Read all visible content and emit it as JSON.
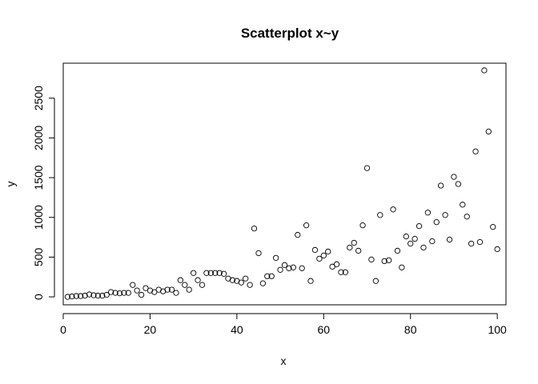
{
  "chart_data": {
    "type": "scatter",
    "title": "Scatterplot x~y",
    "xlabel": "x",
    "ylabel": "y",
    "xlim": [
      0,
      102
    ],
    "ylim": [
      -100,
      2940
    ],
    "xticks": [
      0,
      20,
      40,
      60,
      80,
      100
    ],
    "yticks": [
      0,
      500,
      1000,
      1500,
      2000,
      2500
    ],
    "grid": false,
    "legend": "none",
    "point_color": "#000000",
    "point_style": "open-circle",
    "x": [
      1,
      2,
      3,
      4,
      5,
      6,
      7,
      8,
      9,
      10,
      11,
      12,
      13,
      14,
      15,
      16,
      17,
      18,
      19,
      20,
      21,
      22,
      23,
      24,
      25,
      26,
      27,
      28,
      29,
      30,
      31,
      32,
      33,
      34,
      35,
      36,
      37,
      38,
      39,
      40,
      41,
      42,
      43,
      44,
      45,
      46,
      47,
      48,
      49,
      50,
      51,
      52,
      53,
      54,
      55,
      56,
      57,
      58,
      59,
      60,
      61,
      62,
      63,
      64,
      65,
      66,
      67,
      68,
      69,
      70,
      71,
      72,
      73,
      74,
      75,
      76,
      77,
      78,
      79,
      80,
      81,
      82,
      83,
      84,
      85,
      86,
      87,
      88,
      89,
      90,
      91,
      92,
      93,
      94,
      95,
      96,
      97,
      98,
      99,
      100
    ],
    "y": [
      0,
      5,
      10,
      10,
      15,
      30,
      20,
      15,
      15,
      25,
      60,
      50,
      45,
      50,
      50,
      150,
      80,
      25,
      110,
      80,
      60,
      90,
      70,
      90,
      90,
      50,
      210,
      150,
      90,
      300,
      210,
      150,
      300,
      300,
      300,
      300,
      290,
      230,
      210,
      200,
      180,
      230,
      150,
      860,
      550,
      170,
      260,
      260,
      490,
      340,
      400,
      360,
      370,
      780,
      360,
      900,
      200,
      590,
      480,
      520,
      570,
      380,
      410,
      310,
      310,
      620,
      680,
      580,
      900,
      1620,
      470,
      200,
      1030,
      450,
      460,
      1100,
      580,
      370,
      760,
      670,
      730,
      890,
      620,
      1060,
      700,
      940,
      1400,
      1030,
      720,
      1510,
      1420,
      1160,
      1010,
      670,
      1830,
      690,
      2850,
      2080,
      880,
      600
    ]
  }
}
